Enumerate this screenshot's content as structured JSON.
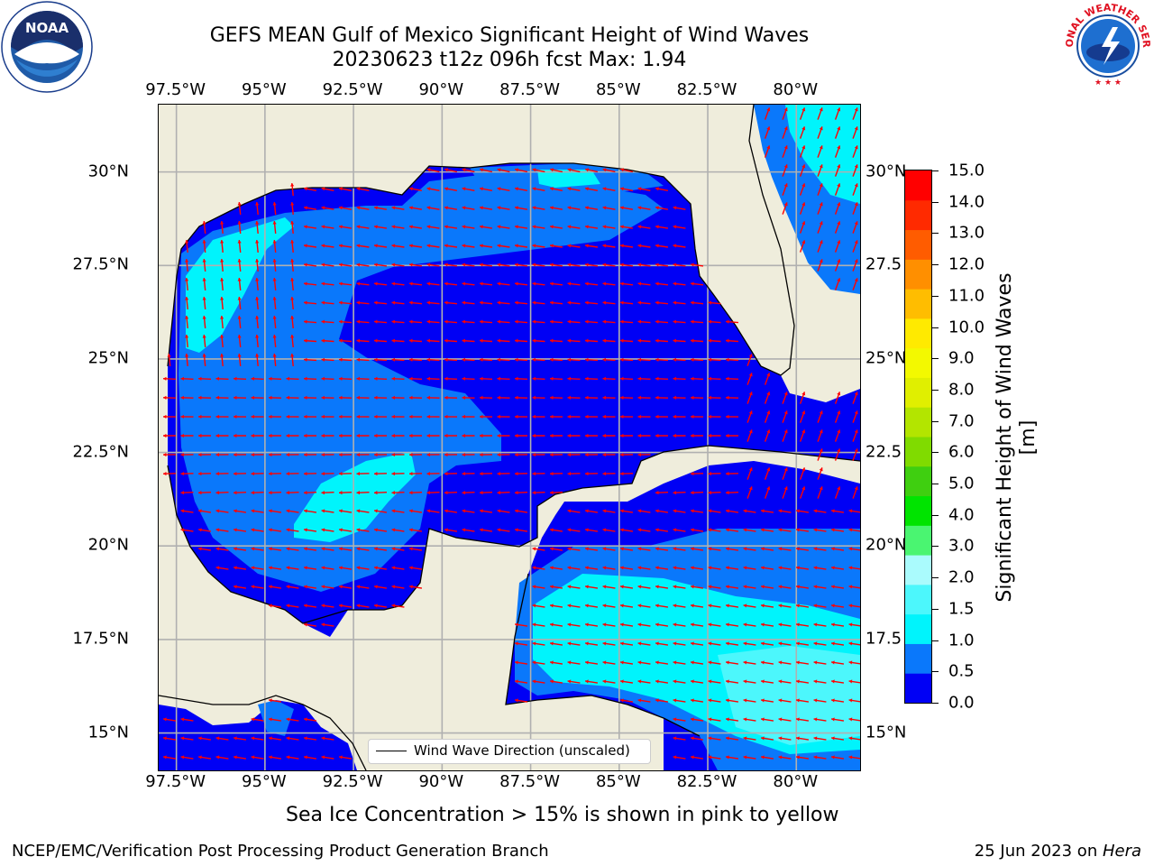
{
  "title": {
    "line1": "GEFS MEAN Gulf of Mexico Significant Height of Wind Waves",
    "line2": "20230623 t12z 096h fcst   Max: 1.94"
  },
  "map": {
    "lon_labels": [
      "97.5°W",
      "95°W",
      "92.5°W",
      "90°W",
      "87.5°W",
      "85°W",
      "82.5°W",
      "80°W"
    ],
    "lat_labels_left": [
      "30°N",
      "27.5°N",
      "25°N",
      "22.5°N",
      "20°N",
      "17.5°N",
      "15°N"
    ],
    "lat_labels_right": [
      "30°N",
      "27.5",
      "25°N",
      "22.5",
      "20°N",
      "17.5",
      "15°N"
    ],
    "lon_range": [
      -98,
      -78.2
    ],
    "lat_range": [
      14,
      31.8
    ],
    "colors": {
      "land": "#efeddc",
      "wave_0_0.5": "#0000f5",
      "wave_0.5_1.0": "#0a78fb",
      "wave_1.0_1.5": "#00f4fc",
      "arrow": "#ff0000",
      "grid": "#b0b0b0"
    },
    "legend_label": "Wind Wave Direction (unscaled)"
  },
  "colorbar": {
    "title": "Significant Height of Wind Waves [m]",
    "tick_labels": [
      "15.0",
      "14.0",
      "13.0",
      "12.0",
      "11.0",
      "10.0",
      "9.0",
      "8.0",
      "7.0",
      "6.0",
      "5.0",
      "4.0",
      "3.0",
      "2.0",
      "1.5",
      "1.0",
      "0.5",
      "0.0"
    ],
    "colors_bottom_to_top": [
      "#0000f5",
      "#0a78fb",
      "#00f4fc",
      "#4cf7fc",
      "#aafbfd",
      "#4af571",
      "#00e400",
      "#3fcf10",
      "#80db00",
      "#b3e500",
      "#e0ef00",
      "#f3f900",
      "#ffea00",
      "#ffbd00",
      "#ff8f00",
      "#ff5c00",
      "#ff2a00",
      "#ff0000"
    ]
  },
  "logos": {
    "noaa_text": "NOAA",
    "nws_text": "NATIONAL WEATHER SERVICE"
  },
  "footer": {
    "note": "Sea Ice Concentration > 15% is shown in pink to yellow",
    "left": "NCEP/EMC/Verification Post Processing Product Generation Branch",
    "right_date": "25 Jun 2023 on ",
    "right_host": "Hera"
  }
}
